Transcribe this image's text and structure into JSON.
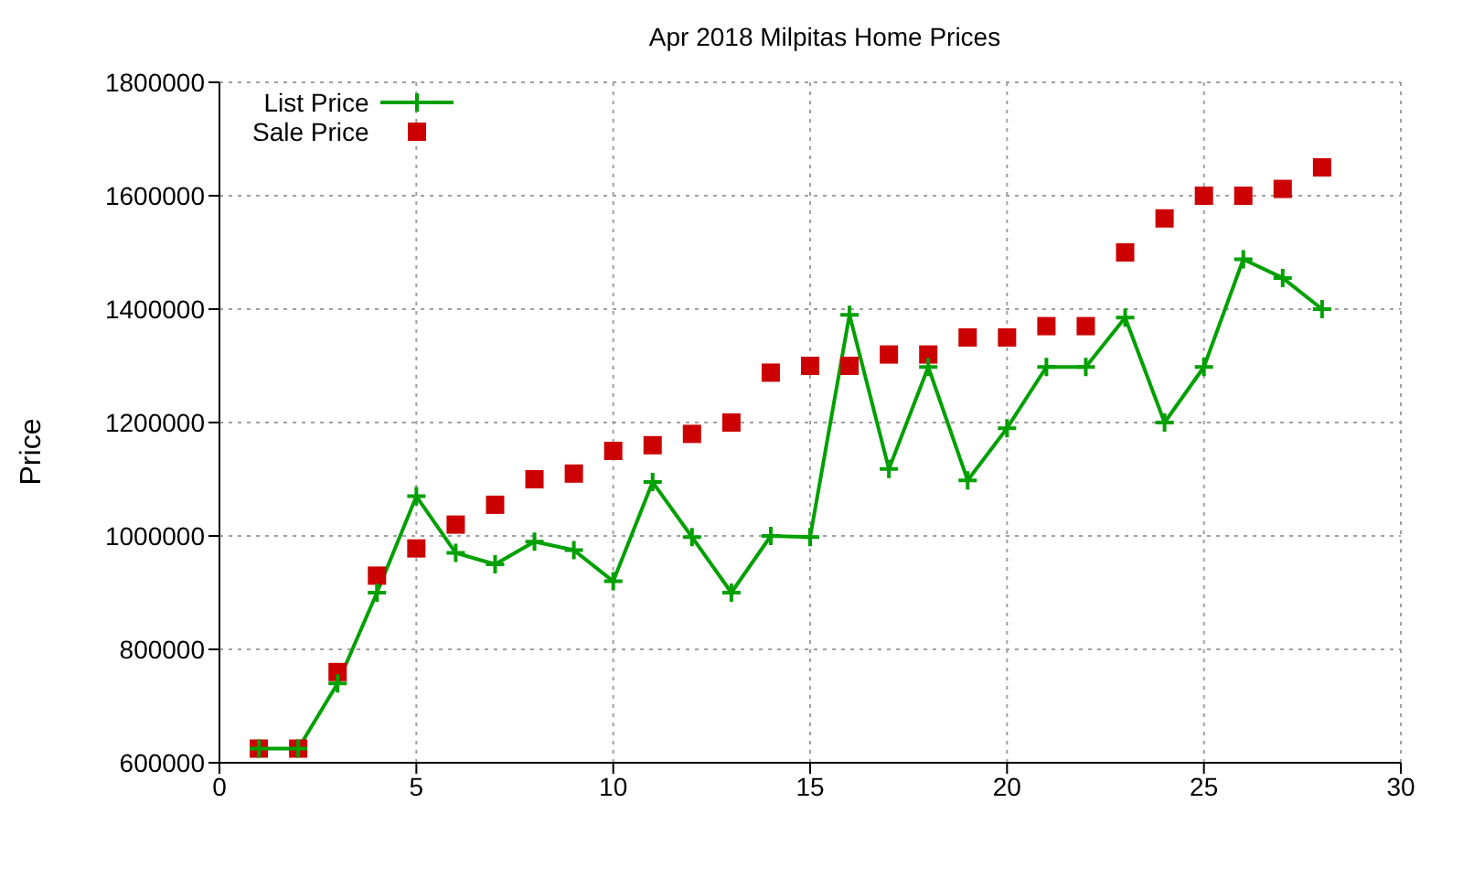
{
  "chart_data": {
    "type": "line",
    "title": "Apr 2018 Milpitas Home Prices",
    "ylabel": "Price",
    "x": [
      1,
      2,
      3,
      4,
      5,
      6,
      7,
      8,
      9,
      10,
      11,
      12,
      13,
      14,
      15,
      16,
      17,
      18,
      19,
      20,
      21,
      22,
      23,
      24,
      25,
      26,
      27,
      28
    ],
    "series": [
      {
        "name": "List Price",
        "marker": "cross",
        "color": "#00a000",
        "values": [
          625000,
          625000,
          740000,
          900000,
          1070000,
          970000,
          950000,
          990000,
          975000,
          920000,
          1095000,
          998000,
          900000,
          1000000,
          998000,
          1390000,
          1118000,
          1298000,
          1098000,
          1190000,
          1298000,
          1298000,
          1385000,
          1200000,
          1298000,
          1488000,
          1455000,
          1400000
        ]
      },
      {
        "name": "Sale Price",
        "type": "scatter",
        "marker": "square",
        "color": "#cc0000",
        "values": [
          625000,
          625000,
          760000,
          930000,
          978000,
          1020000,
          1055000,
          1100000,
          1110000,
          1150000,
          1160000,
          1180000,
          1200000,
          1288000,
          1300000,
          1300000,
          1320000,
          1320000,
          1350000,
          1350000,
          1370000,
          1370000,
          1500000,
          1560000,
          1600000,
          1600000,
          1612000,
          1650000
        ]
      }
    ],
    "xlim": [
      0,
      30
    ],
    "xticks": [
      0,
      5,
      10,
      15,
      20,
      25,
      30
    ],
    "ylim": [
      600000,
      1800000
    ],
    "yticks": [
      600000,
      800000,
      1000000,
      1200000,
      1400000,
      1600000,
      1800000
    ],
    "grid": true,
    "legend": "top left"
  }
}
